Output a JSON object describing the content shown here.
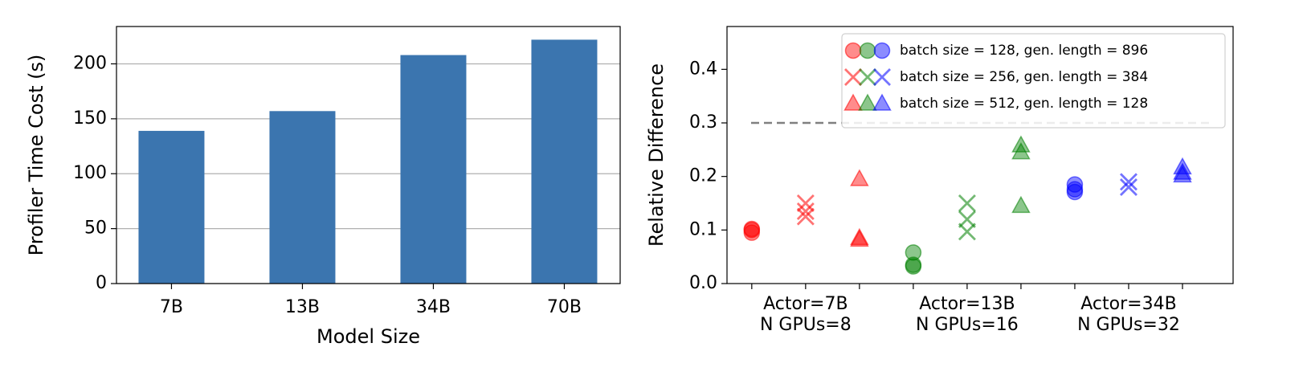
{
  "chart_data": [
    {
      "type": "bar",
      "categories": [
        "7B",
        "13B",
        "34B",
        "70B"
      ],
      "values": [
        139,
        157,
        208,
        222
      ],
      "color": "#3b75af",
      "xlabel": "Model Size",
      "ylabel": "Profiler Time Cost (s)",
      "ylim": [
        0,
        234
      ],
      "yticks": [
        0,
        50,
        100,
        150,
        200
      ],
      "grid": true
    },
    {
      "type": "scatter",
      "ylabel": "Relative Difference",
      "xlim": [
        -0.46,
        8.94
      ],
      "xticks": [
        0,
        1,
        2,
        3,
        4,
        5,
        6,
        7,
        8
      ],
      "xtick_labels": [
        {
          "value": 1,
          "label": "Actor=7B\nN GPUs=8"
        },
        {
          "value": 4,
          "label": "Actor=13B\nN GPUs=16"
        },
        {
          "value": 7,
          "label": "Actor=34B\nN GPUs=32"
        }
      ],
      "ylim": [
        0,
        0.48
      ],
      "yticks": [
        {
          "value": 0,
          "label": "0.0"
        },
        0.1,
        0.2,
        0.3,
        0.4
      ],
      "hline": 0.3,
      "legend": "upper right",
      "palette": [
        "red",
        "green",
        "blue"
      ],
      "series": [
        {
          "name": "batch size = 128, gen. length = 896",
          "marker": "circle",
          "x": [
            0,
            0,
            0,
            3,
            3,
            3,
            6,
            6,
            6
          ],
          "values": [
            0.102,
            0.095,
            0.1,
            0.058,
            0.035,
            0.032,
            0.185,
            0.176,
            0.171
          ],
          "colors": [
            "red",
            "red",
            "red",
            "green",
            "green",
            "green",
            "blue",
            "blue",
            "blue"
          ]
        },
        {
          "name": "batch size = 256, gen. length = 384",
          "marker": "x",
          "x": [
            1,
            1,
            1,
            4,
            4,
            4,
            7,
            7
          ],
          "values": [
            0.15,
            0.135,
            0.125,
            0.15,
            0.12,
            0.097,
            0.19,
            0.18
          ],
          "colors": [
            "red",
            "red",
            "red",
            "green",
            "green",
            "green",
            "blue",
            "blue"
          ]
        },
        {
          "name": "batch size = 512, gen. length = 128",
          "marker": "triangle",
          "x": [
            2,
            2,
            2,
            5,
            5,
            5,
            8,
            8,
            8
          ],
          "values": [
            0.195,
            0.085,
            0.082,
            0.258,
            0.245,
            0.145,
            0.217,
            0.207,
            0.202
          ],
          "colors": [
            "red",
            "red",
            "red",
            "green",
            "green",
            "green",
            "blue",
            "blue",
            "blue"
          ]
        }
      ]
    }
  ]
}
